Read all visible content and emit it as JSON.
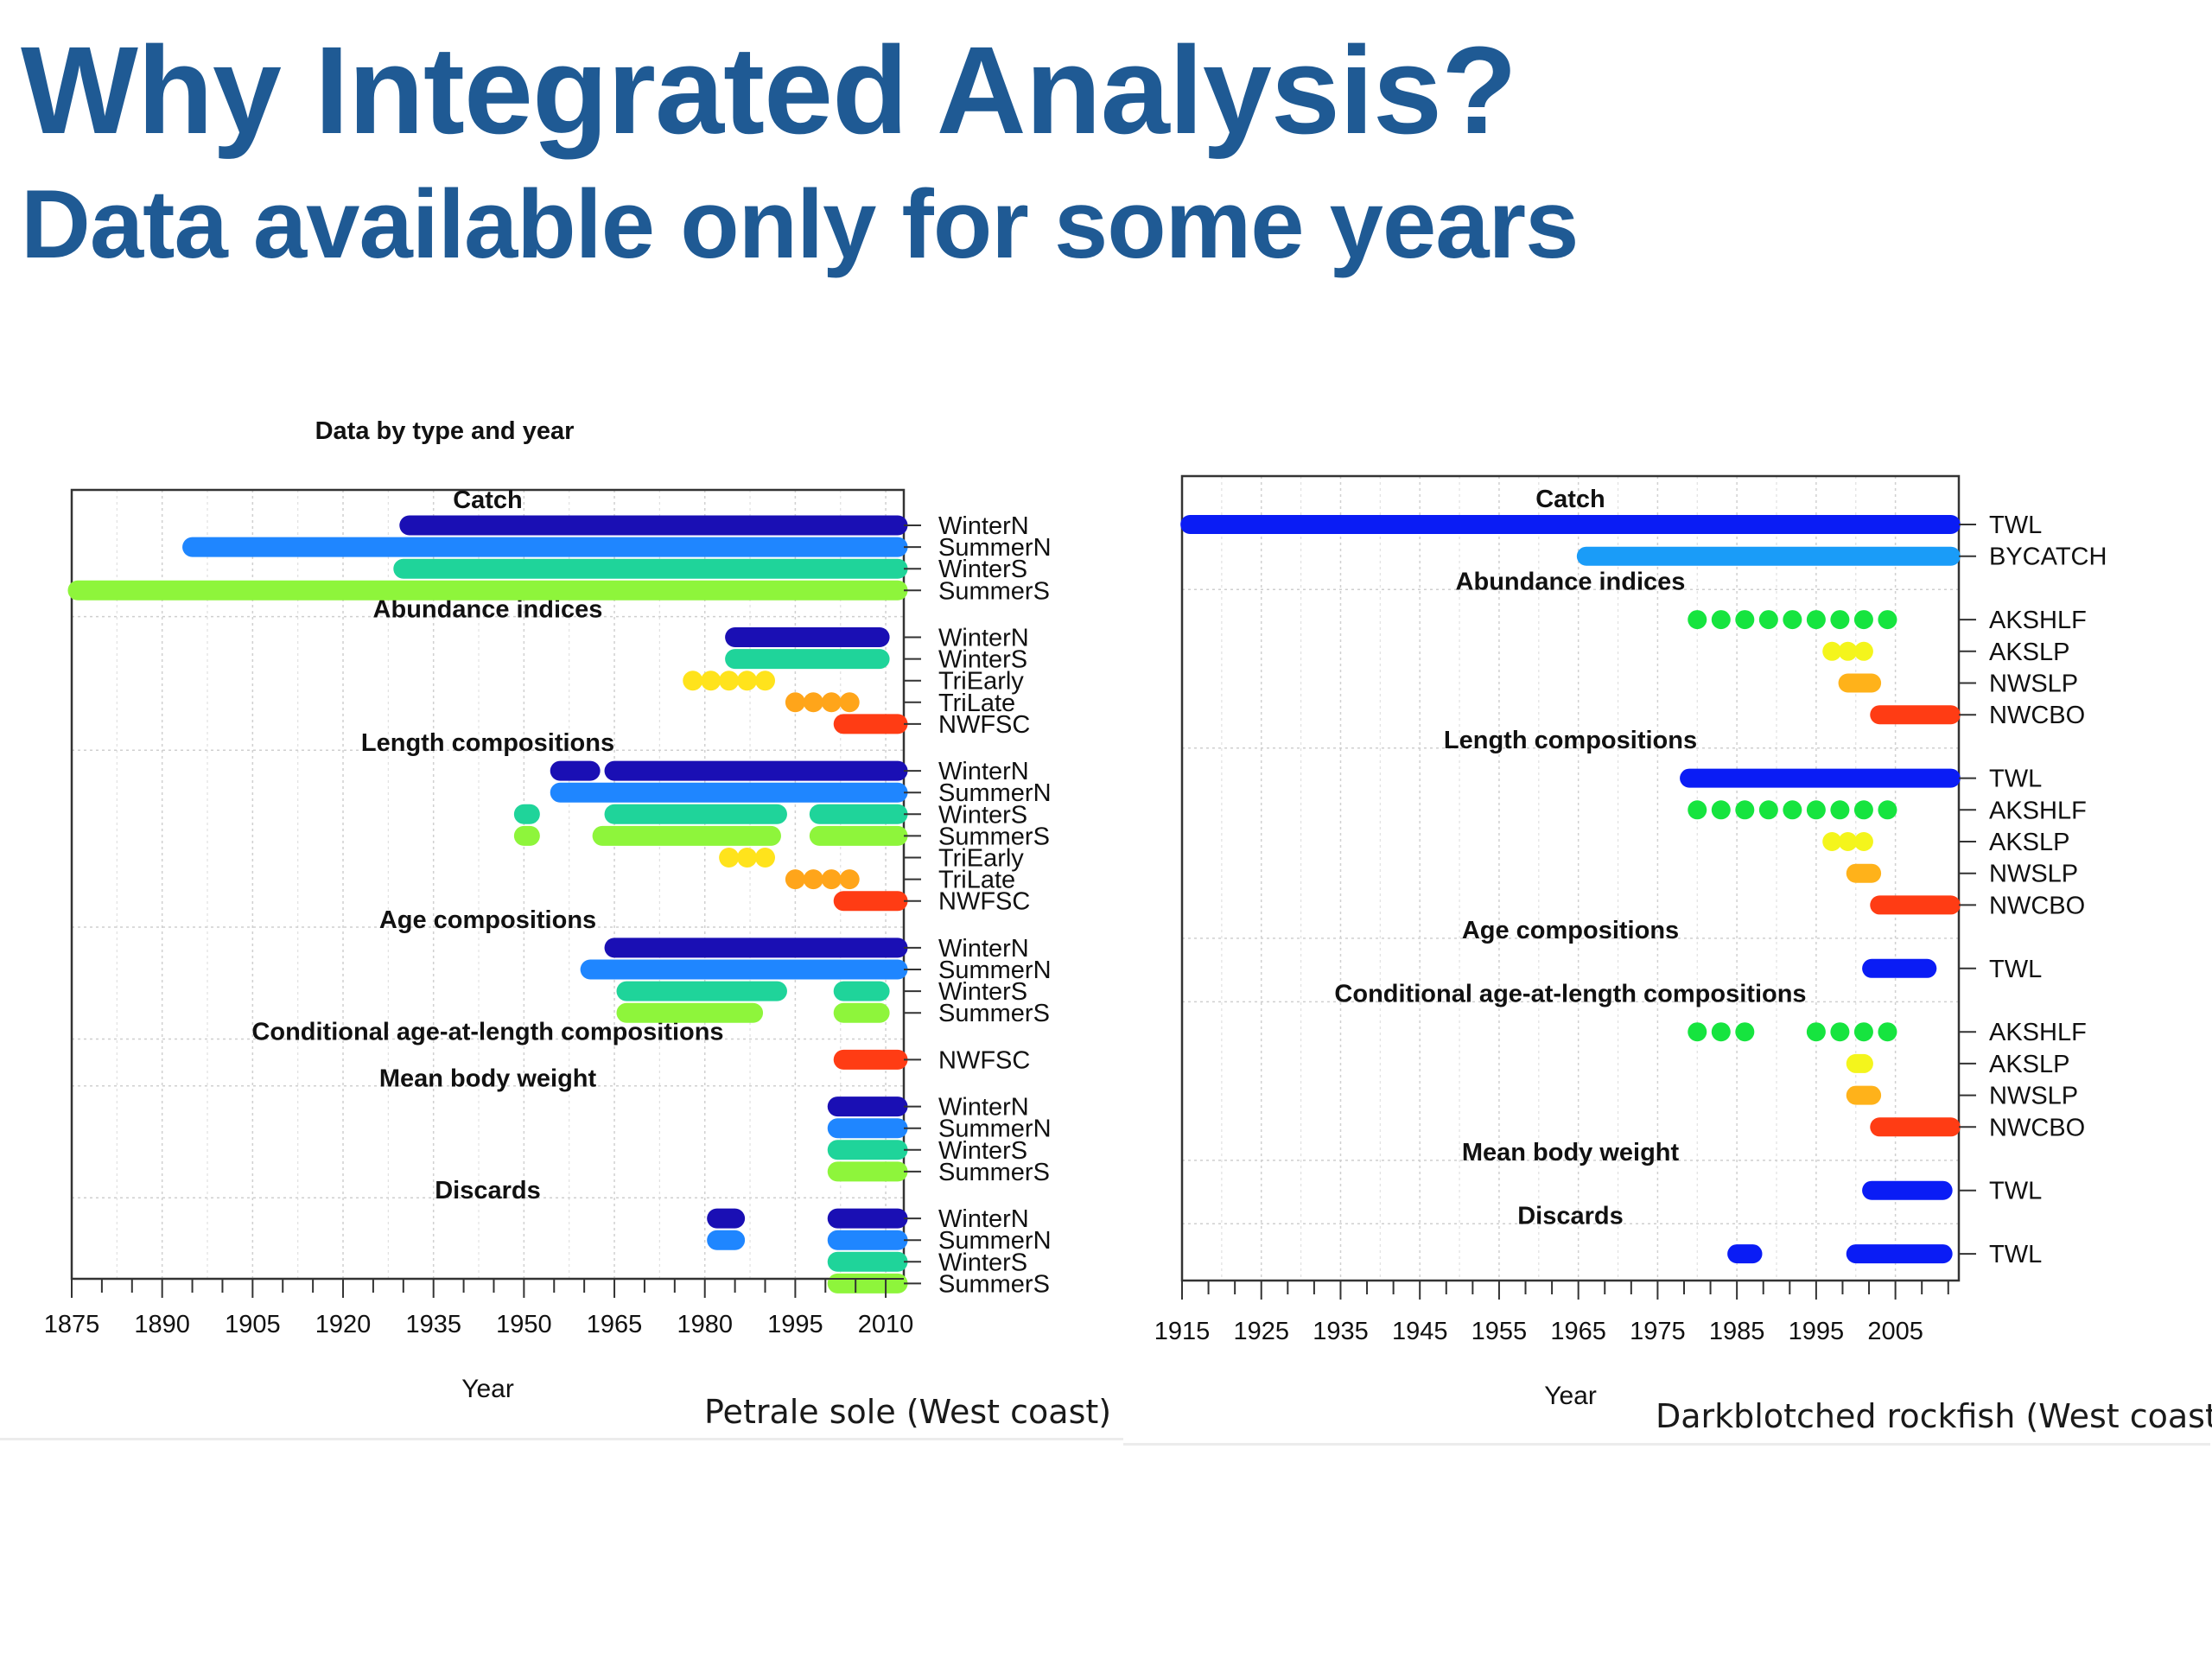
{
  "slide": {
    "title": "Why Integrated Analysis?",
    "subtitle": "Data available only for some years",
    "title_color": "#1f5a94"
  },
  "chart_data": [
    {
      "type": "timeline",
      "title": "Data by type and year",
      "xlabel": "Year",
      "caption": "Petrale sole (West coast)",
      "xlim": [
        1875,
        2013
      ],
      "xticks": [
        1875,
        1890,
        1905,
        1920,
        1935,
        1950,
        1965,
        1980,
        1995,
        2010
      ],
      "grid": true,
      "groups": [
        {
          "label": "Catch",
          "rows": [
            {
              "label": "WinterN",
              "color": "#1a0fb4",
              "segments": [
                [
                  1931,
                  2012
                ]
              ]
            },
            {
              "label": "SummerN",
              "color": "#1f86ff",
              "segments": [
                [
                  1895,
                  2012
                ]
              ]
            },
            {
              "label": "WinterS",
              "color": "#1fd49a",
              "segments": [
                [
                  1930,
                  2012
                ]
              ]
            },
            {
              "label": "SummerS",
              "color": "#8ef53b",
              "segments": [
                [
                  1876,
                  2012
                ]
              ]
            }
          ]
        },
        {
          "label": "Abundance indices",
          "rows": [
            {
              "label": "WinterN",
              "color": "#1a0fb4",
              "segments": [
                [
                  1985,
                  2009
                ]
              ]
            },
            {
              "label": "WinterS",
              "color": "#1fd49a",
              "segments": [
                [
                  1985,
                  2009
                ]
              ]
            },
            {
              "label": "TriEarly",
              "color": "#ffe31c",
              "points": [
                1978,
                1981,
                1984,
                1987,
                1990
              ]
            },
            {
              "label": "TriLate",
              "color": "#ffa51a",
              "points": [
                1995,
                1998,
                2001,
                2004
              ]
            },
            {
              "label": "NWFSC",
              "color": "#ff3c14",
              "segments": [
                [
                  2003,
                  2012
                ]
              ]
            }
          ]
        },
        {
          "label": "Length compositions",
          "rows": [
            {
              "label": "WinterN",
              "color": "#1a0fb4",
              "segments": [
                [
                  1956,
                  1961
                ],
                [
                  1965,
                  2012
                ]
              ]
            },
            {
              "label": "SummerN",
              "color": "#1f86ff",
              "segments": [
                [
                  1956,
                  2012
                ]
              ]
            },
            {
              "label": "WinterS",
              "color": "#1fd49a",
              "segments": [
                [
                  1950,
                  1951
                ],
                [
                  1965,
                  1992
                ],
                [
                  1999,
                  2012
                ]
              ]
            },
            {
              "label": "SummerS",
              "color": "#8ef53b",
              "segments": [
                [
                  1950,
                  1951
                ],
                [
                  1963,
                  1991
                ],
                [
                  1999,
                  2012
                ]
              ]
            },
            {
              "label": "TriEarly",
              "color": "#ffe31c",
              "points": [
                1984,
                1987,
                1990
              ]
            },
            {
              "label": "TriLate",
              "color": "#ffa51a",
              "points": [
                1995,
                1998,
                2001,
                2004
              ]
            },
            {
              "label": "NWFSC",
              "color": "#ff3c14",
              "segments": [
                [
                  2003,
                  2012
                ]
              ]
            }
          ]
        },
        {
          "label": "Age compositions",
          "rows": [
            {
              "label": "WinterN",
              "color": "#1a0fb4",
              "segments": [
                [
                  1965,
                  2012
                ]
              ]
            },
            {
              "label": "SummerN",
              "color": "#1f86ff",
              "segments": [
                [
                  1961,
                  2012
                ]
              ]
            },
            {
              "label": "WinterS",
              "color": "#1fd49a",
              "segments": [
                [
                  1967,
                  1992
                ],
                [
                  2003,
                  2009
                ]
              ]
            },
            {
              "label": "SummerS",
              "color": "#8ef53b",
              "segments": [
                [
                  1967,
                  1988
                ],
                [
                  2003,
                  2009
                ]
              ]
            }
          ]
        },
        {
          "label": "Conditional age-at-length compositions",
          "rows": [
            {
              "label": "NWFSC",
              "color": "#ff3c14",
              "segments": [
                [
                  2003,
                  2012
                ]
              ]
            }
          ]
        },
        {
          "label": "Mean body weight",
          "rows": [
            {
              "label": "WinterN",
              "color": "#1a0fb4",
              "segments": [
                [
                  2002,
                  2012
                ]
              ]
            },
            {
              "label": "SummerN",
              "color": "#1f86ff",
              "segments": [
                [
                  2002,
                  2012
                ]
              ]
            },
            {
              "label": "WinterS",
              "color": "#1fd49a",
              "segments": [
                [
                  2002,
                  2012
                ]
              ]
            },
            {
              "label": "SummerS",
              "color": "#8ef53b",
              "segments": [
                [
                  2002,
                  2012
                ]
              ]
            }
          ]
        },
        {
          "label": "Discards",
          "rows": [
            {
              "label": "WinterN",
              "color": "#1a0fb4",
              "segments": [
                [
                  1982,
                  1985
                ],
                [
                  2002,
                  2012
                ]
              ]
            },
            {
              "label": "SummerN",
              "color": "#1f86ff",
              "segments": [
                [
                  1982,
                  1985
                ],
                [
                  2002,
                  2012
                ]
              ]
            },
            {
              "label": "WinterS",
              "color": "#1fd49a",
              "segments": [
                [
                  2002,
                  2012
                ]
              ]
            },
            {
              "label": "SummerS",
              "color": "#8ef53b",
              "segments": [
                [
                  2002,
                  2012
                ]
              ]
            }
          ]
        }
      ]
    },
    {
      "type": "timeline",
      "title": "",
      "xlabel": "Year",
      "caption": "Darkblotched rockfish (West coast)",
      "xlim": [
        1915,
        2013
      ],
      "xticks": [
        1915,
        1925,
        1935,
        1945,
        1955,
        1965,
        1975,
        1985,
        1995,
        2005
      ],
      "grid": true,
      "groups": [
        {
          "label": "Catch",
          "rows": [
            {
              "label": "TWL",
              "color": "#0a1cf5",
              "segments": [
                [
                  1916,
                  2012
                ]
              ]
            },
            {
              "label": "BYCATCH",
              "color": "#1a9cf8",
              "segments": [
                [
                  1966,
                  2012
                ]
              ]
            }
          ]
        },
        {
          "label": "Abundance indices",
          "rows": [
            {
              "label": "AKSHLF",
              "color": "#16e43f",
              "points": [
                1980,
                1983,
                1986,
                1989,
                1992,
                1995,
                1998,
                2001,
                2004
              ]
            },
            {
              "label": "AKSLP",
              "color": "#f4f51c",
              "points": [
                1997,
                1999,
                2001
              ]
            },
            {
              "label": "NWSLP",
              "color": "#ffb21a",
              "segments": [
                [
                  1999,
                  2002
                ]
              ]
            },
            {
              "label": "NWCBO",
              "color": "#ff3c14",
              "segments": [
                [
                  2003,
                  2012
                ]
              ]
            }
          ]
        },
        {
          "label": "Length compositions",
          "rows": [
            {
              "label": "TWL",
              "color": "#0a1cf5",
              "segments": [
                [
                  1979,
                  2012
                ]
              ]
            },
            {
              "label": "AKSHLF",
              "color": "#16e43f",
              "points": [
                1980,
                1983,
                1986,
                1989,
                1992,
                1995,
                1998,
                2001,
                2004
              ]
            },
            {
              "label": "AKSLP",
              "color": "#f4f51c",
              "points": [
                1997,
                1999,
                2001
              ]
            },
            {
              "label": "NWSLP",
              "color": "#ffb21a",
              "segments": [
                [
                  2000,
                  2002
                ]
              ]
            },
            {
              "label": "NWCBO",
              "color": "#ff3c14",
              "segments": [
                [
                  2003,
                  2012
                ]
              ]
            }
          ]
        },
        {
          "label": "Age compositions",
          "rows": [
            {
              "label": "TWL",
              "color": "#0a1cf5",
              "segments": [
                [
                  2002,
                  2009
                ]
              ]
            }
          ]
        },
        {
          "label": "Conditional age-at-length compositions",
          "rows": [
            {
              "label": "AKSHLF",
              "color": "#16e43f",
              "points": [
                1980,
                1983,
                1986,
                1995,
                1998,
                2001,
                2004
              ]
            },
            {
              "label": "AKSLP",
              "color": "#f4f51c",
              "segments": [
                [
                  2000,
                  2001
                ]
              ]
            },
            {
              "label": "NWSLP",
              "color": "#ffb21a",
              "segments": [
                [
                  2000,
                  2002
                ]
              ]
            },
            {
              "label": "NWCBO",
              "color": "#ff3c14",
              "segments": [
                [
                  2003,
                  2012
                ]
              ]
            }
          ]
        },
        {
          "label": "Mean body weight",
          "rows": [
            {
              "label": "TWL",
              "color": "#0a1cf5",
              "segments": [
                [
                  2002,
                  2011
                ]
              ]
            }
          ]
        },
        {
          "label": "Discards",
          "rows": [
            {
              "label": "TWL",
              "color": "#0a1cf5",
              "segments": [
                [
                  1985,
                  1987
                ],
                [
                  2000,
                  2011
                ]
              ]
            }
          ]
        }
      ]
    }
  ]
}
